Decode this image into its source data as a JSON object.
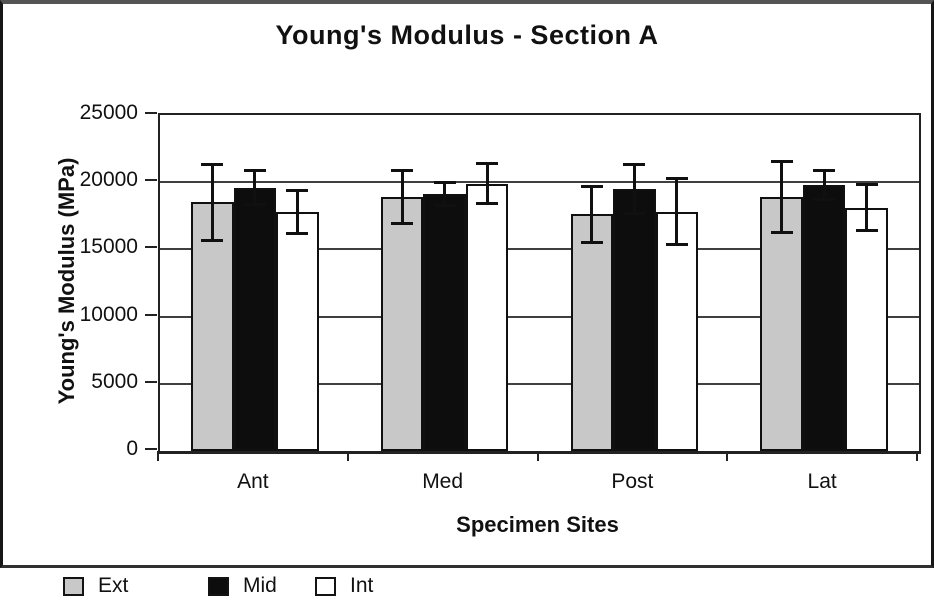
{
  "figure": {
    "title": "Young's Modulus - Section A"
  },
  "axes": {
    "y_title": "Young's Modulus (MPa)",
    "x_title": "Specimen Sites"
  },
  "chart_data": {
    "type": "bar",
    "title": "Young's Modulus - Section A",
    "xlabel": "Specimen Sites",
    "ylabel": "Young's Modulus (MPa)",
    "categories": [
      "Ant",
      "Med",
      "Post",
      "Lat"
    ],
    "series": [
      {
        "name": "Ext",
        "color": "#c8c8c8",
        "values": [
          18500,
          18900,
          17600,
          18900
        ],
        "error_bars": [
          2850,
          2000,
          2100,
          2650
        ]
      },
      {
        "name": "Mid",
        "color": "#0d0d0d",
        "values": [
          19600,
          19100,
          19500,
          19800
        ],
        "error_bars": [
          1300,
          900,
          1850,
          1100
        ]
      },
      {
        "name": "Int",
        "color": "#ffffff",
        "values": [
          17800,
          19900,
          17800,
          18100
        ],
        "error_bars": [
          1650,
          1500,
          2500,
          1750
        ]
      }
    ],
    "ylim": [
      0,
      25000
    ],
    "yticks": [
      0,
      5000,
      10000,
      15000,
      20000,
      25000
    ],
    "grid": true,
    "legend_position": "bottom-left",
    "bar_outline": "#101010",
    "error_bar_color": "#101010"
  }
}
